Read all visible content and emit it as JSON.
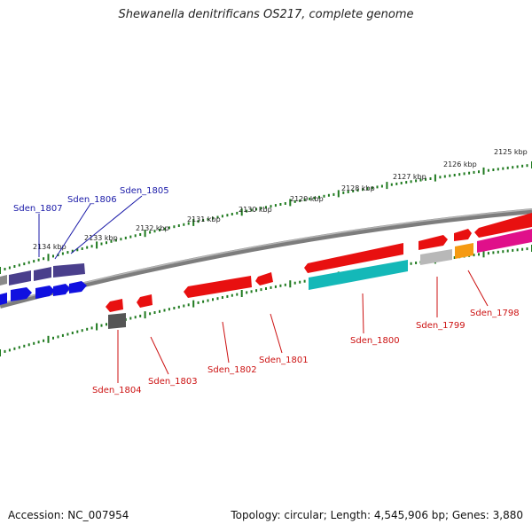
{
  "title": "Shewanella denitrificans OS217, complete genome",
  "footer": {
    "accession": "Accession: NC_007954",
    "summary": "Topology: circular; Length: 4,545,906 bp; Genes: 3,880"
  },
  "colors": {
    "forward_label": "#1a1aa8",
    "reverse_label": "#cc1111",
    "tick": "#1f7a1f",
    "backbone": "#8a8a8a"
  },
  "kbp_labels": [
    "2125 kbp",
    "2126 kbp",
    "2127 kbp",
    "2128 kbp",
    "2129 kbp",
    "2130 kbp",
    "2131 kbp",
    "2132 kbp",
    "2133 kbp",
    "2134 kbp"
  ],
  "gene_labels": {
    "forward": [
      "Sden_1807",
      "Sden_1806",
      "Sden_1805"
    ],
    "reverse": [
      "Sden_1804",
      "Sden_1803",
      "Sden_1802",
      "Sden_1801",
      "Sden_1800",
      "Sden_1799",
      "Sden_1798"
    ]
  }
}
